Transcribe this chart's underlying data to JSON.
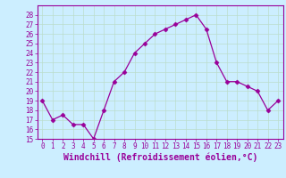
{
  "x": [
    0,
    1,
    2,
    3,
    4,
    5,
    6,
    7,
    8,
    9,
    10,
    11,
    12,
    13,
    14,
    15,
    16,
    17,
    18,
    19,
    20,
    21,
    22,
    23
  ],
  "y": [
    19,
    17,
    17.5,
    16.5,
    16.5,
    15,
    18,
    21,
    22,
    24,
    25,
    26,
    26.5,
    27,
    27.5,
    28,
    26.5,
    23,
    21,
    21,
    20.5,
    20,
    18,
    19
  ],
  "line_color": "#990099",
  "marker": "D",
  "marker_size": 2.5,
  "bg_color": "#cceeff",
  "grid_color": "#aaddcc",
  "xlabel": "Windchill (Refroidissement éolien,°C)",
  "xlabel_fontsize": 7,
  "ylim": [
    15,
    29
  ],
  "xlim": [
    -0.5,
    23.5
  ],
  "yticks": [
    15,
    16,
    17,
    18,
    19,
    20,
    21,
    22,
    23,
    24,
    25,
    26,
    27,
    28
  ],
  "xticks": [
    0,
    1,
    2,
    3,
    4,
    5,
    6,
    7,
    8,
    9,
    10,
    11,
    12,
    13,
    14,
    15,
    16,
    17,
    18,
    19,
    20,
    21,
    22,
    23
  ],
  "tick_color": "#990099",
  "tick_fontsize": 5.5,
  "spine_color": "#990099"
}
